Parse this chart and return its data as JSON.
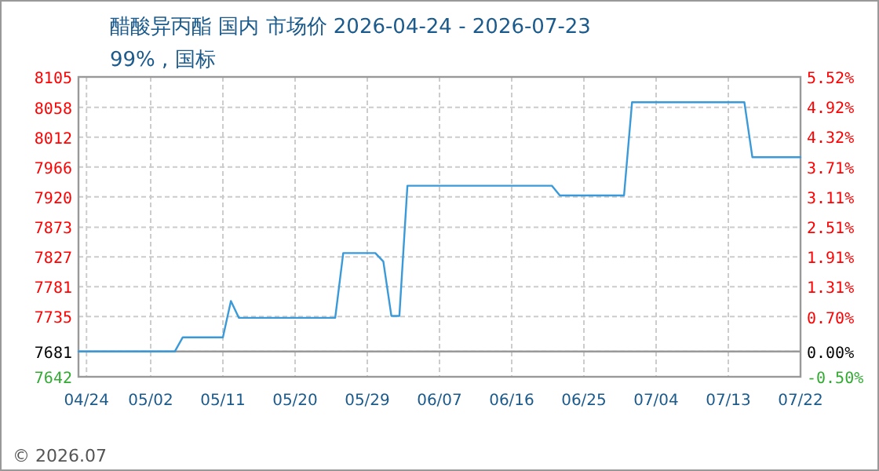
{
  "chart_data": {
    "type": "line",
    "title": "醋酸异丙酯 国内 市场价 2026-04-24 - 2026-07-23",
    "subtitle": "99% , 国标",
    "x": [
      "2026-04-23",
      "2026-05-05",
      "2026-05-06",
      "2026-05-11",
      "2026-05-12",
      "2026-05-13",
      "2026-05-25",
      "2026-05-26",
      "2026-05-30",
      "2026-05-31",
      "2026-06-01",
      "2026-06-02",
      "2026-06-03",
      "2026-06-21",
      "2026-06-22",
      "2026-06-30",
      "2026-07-01",
      "2026-07-15",
      "2026-07-16",
      "2026-07-22"
    ],
    "series": [
      {
        "color": "#3a9ad9",
        "values": [
          7681,
          7681,
          7703,
          7703,
          7759,
          7733,
          7733,
          7833,
          7833,
          7820,
          7736,
          7736,
          7937,
          7937,
          7922,
          7922,
          8066,
          8066,
          7981,
          7981
        ]
      }
    ],
    "xlim": [
      "2026-04-23",
      "2026-07-22"
    ],
    "xticks": [
      {
        "value": "2026-04-24",
        "label": "04/24"
      },
      {
        "value": "2026-05-02",
        "label": "05/02"
      },
      {
        "value": "2026-05-11",
        "label": "05/11"
      },
      {
        "value": "2026-05-20",
        "label": "05/20"
      },
      {
        "value": "2026-05-29",
        "label": "05/29"
      },
      {
        "value": "2026-06-07",
        "label": "06/07"
      },
      {
        "value": "2026-06-16",
        "label": "06/16"
      },
      {
        "value": "2026-06-25",
        "label": "06/25"
      },
      {
        "value": "2026-07-04",
        "label": "07/04"
      },
      {
        "value": "2026-07-13",
        "label": "07/13"
      },
      {
        "value": "2026-07-22",
        "label": "07/22"
      }
    ],
    "ylim": [
      7642,
      8105
    ],
    "yticks": [
      7642,
      7681,
      7735,
      7781,
      7827,
      7873,
      7920,
      7966,
      8012,
      8058,
      8105
    ],
    "y2lim": [
      -0.5,
      5.52
    ],
    "y2ticks": [
      {
        "value": -0.5,
        "label": "-0.50%"
      },
      {
        "value": 0,
        "label": "0.00%"
      },
      {
        "value": 0.7,
        "label": "0.70%"
      },
      {
        "value": 1.31,
        "label": "1.31%"
      },
      {
        "value": 1.91,
        "label": "1.91%"
      },
      {
        "value": 2.51,
        "label": "2.51%"
      },
      {
        "value": 3.11,
        "label": "3.11%"
      },
      {
        "value": 3.71,
        "label": "3.71%"
      },
      {
        "value": 4.32,
        "label": "4.32%"
      },
      {
        "value": 4.92,
        "label": "4.92%"
      },
      {
        "value": 5.52,
        "label": "5.52%"
      }
    ],
    "ref_lines": [
      {
        "axis": "y",
        "value": 7681,
        "color": "#999999"
      }
    ],
    "grid": true,
    "annotations": [
      "© 2026.07"
    ]
  }
}
